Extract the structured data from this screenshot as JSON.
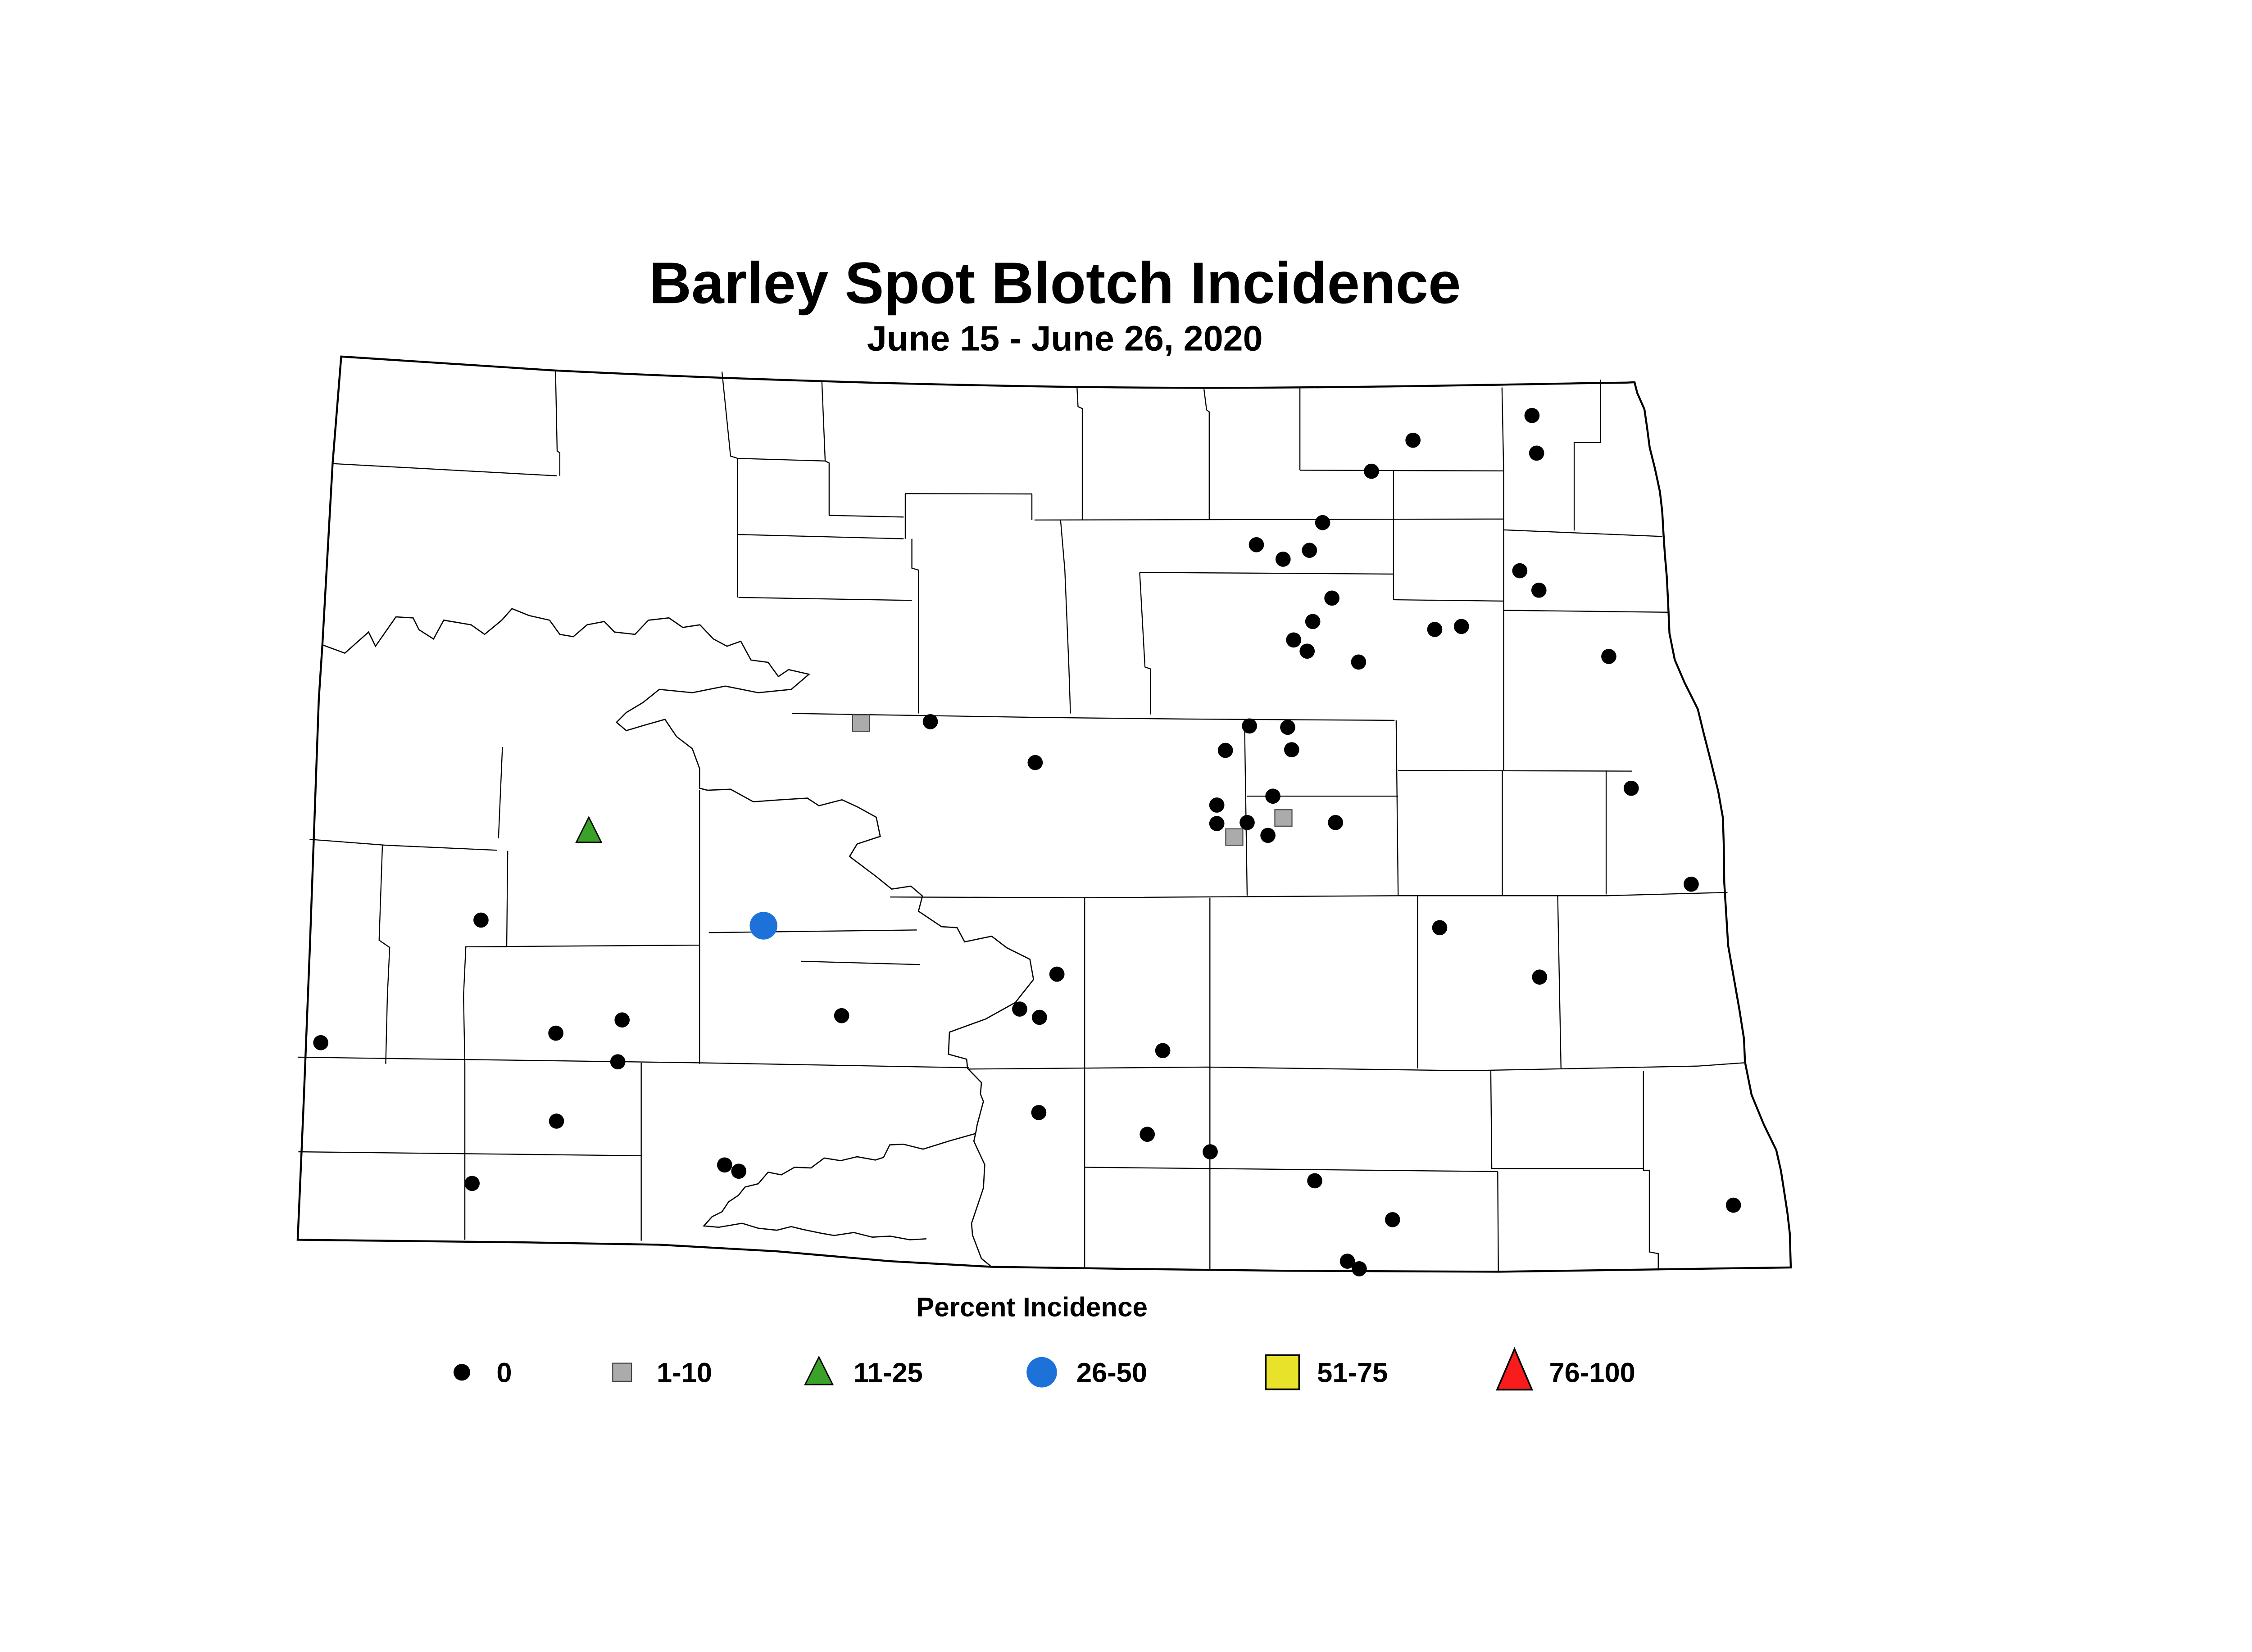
{
  "title": "Barley Spot Blotch Incidence",
  "subtitle": "June 15 - June 26, 2020",
  "legend": {
    "title": "Percent Incidence",
    "items": [
      {
        "label": "0",
        "shape": "dot",
        "color": "#000000"
      },
      {
        "label": "1-10",
        "shape": "square",
        "color": "#ABABAB"
      },
      {
        "label": "11-25",
        "shape": "triangle",
        "color": "#3BA229"
      },
      {
        "label": "26-50",
        "shape": "circle",
        "color": "#1C72D8"
      },
      {
        "label": "51-75",
        "shape": "square-large",
        "color": "#E8E22B"
      },
      {
        "label": "76-100",
        "shape": "triangle-large",
        "color": "#F81C1C"
      }
    ]
  },
  "chart_data": {
    "type": "scatter",
    "title": "Barley Spot Blotch Incidence",
    "subtitle": "June 15 - June 26, 2020",
    "legend_title": "Percent Incidence",
    "categories": [
      "0",
      "1-10",
      "11-25",
      "26-50",
      "51-75",
      "76-100"
    ],
    "points": {
      "incidence_0": [
        [
          4647,
          589
        ],
        [
          4286,
          664
        ],
        [
          4661,
          703
        ],
        [
          4160,
          758
        ],
        [
          4012,
          914
        ],
        [
          3811,
          981
        ],
        [
          3972,
          998
        ],
        [
          3892,
          1025
        ],
        [
          4610,
          1060
        ],
        [
          4668,
          1119
        ],
        [
          4040,
          1143
        ],
        [
          3982,
          1214
        ],
        [
          3924,
          1270
        ],
        [
          3965,
          1304
        ],
        [
          4121,
          1337
        ],
        [
          4352,
          1238
        ],
        [
          4433,
          1229
        ],
        [
          4880,
          1320
        ],
        [
          3790,
          1531
        ],
        [
          3906,
          1535
        ],
        [
          3717,
          1605
        ],
        [
          3918,
          1603
        ],
        [
          3861,
          1744
        ],
        [
          3691,
          1771
        ],
        [
          3691,
          1827
        ],
        [
          3783,
          1824
        ],
        [
          3846,
          1863
        ],
        [
          4051,
          1824
        ],
        [
          2822,
          1518
        ],
        [
          3140,
          1642
        ],
        [
          1459,
          2120
        ],
        [
          973,
          2492
        ],
        [
          1887,
          2423
        ],
        [
          1686,
          2463
        ],
        [
          2553,
          2410
        ],
        [
          1874,
          2550
        ],
        [
          1688,
          2730
        ],
        [
          2198,
          2863
        ],
        [
          2241,
          2882
        ],
        [
          1432,
          2919
        ],
        [
          3206,
          2284
        ],
        [
          3093,
          2390
        ],
        [
          3153,
          2415
        ],
        [
          3527,
          2516
        ],
        [
          3151,
          2704
        ],
        [
          3480,
          2770
        ],
        [
          3671,
          2823
        ],
        [
          3988,
          2911
        ],
        [
          4224,
          3029
        ],
        [
          4087,
          3155
        ],
        [
          4123,
          3178
        ],
        [
          4948,
          1720
        ],
        [
          5130,
          2011
        ],
        [
          4367,
          2143
        ],
        [
          4670,
          2293
        ],
        [
          5258,
          2985
        ]
      ],
      "incidence_1_10": [
        [
          2612,
          1522
        ],
        [
          3893,
          1810
        ],
        [
          3744,
          1868
        ]
      ],
      "incidence_11_25": [
        [
          1786,
          1850
        ]
      ],
      "incidence_26_50": [
        [
          2316,
          2137
        ]
      ],
      "incidence_51_75": [],
      "incidence_76_100": []
    }
  }
}
